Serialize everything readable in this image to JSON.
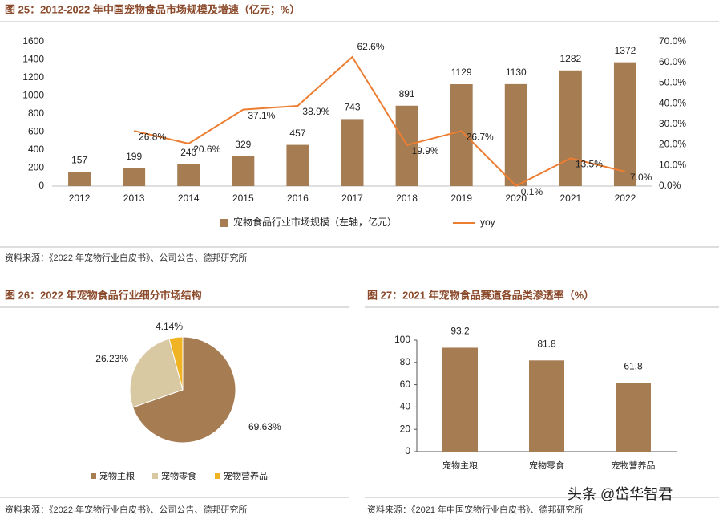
{
  "chart_data": [
    {
      "type": "bar",
      "title": "图 25：2012-2022 年中国宠物食品市场规模及增速（亿元；%）",
      "categories": [
        "2012",
        "2013",
        "2014",
        "2015",
        "2016",
        "2017",
        "2018",
        "2019",
        "2020",
        "2021",
        "2022"
      ],
      "series": [
        {
          "name": "宠物食品行业市场规模（左轴，亿元）",
          "type": "bar",
          "color": "#a67c52",
          "values": [
            157,
            199,
            240,
            329,
            457,
            743,
            891,
            1129,
            1130,
            1282,
            1372
          ]
        },
        {
          "name": "yoy",
          "type": "line",
          "axis": "y2",
          "color": "#ed7d31",
          "values": [
            null,
            26.8,
            20.6,
            37.1,
            38.9,
            62.6,
            19.9,
            26.7,
            0.1,
            13.5,
            7.0
          ],
          "value_labels": [
            null,
            "26.8%",
            "20.6%",
            "37.1%",
            "38.9%",
            "62.6%",
            "19.9%",
            "26.7%",
            "0.1%",
            "13.5%",
            "7.0%"
          ]
        }
      ],
      "ylim": [
        0,
        1600
      ],
      "yticks": [
        0,
        200,
        400,
        600,
        800,
        1000,
        1200,
        1400,
        1600
      ],
      "y2lim": [
        0,
        70
      ],
      "y2ticks": [
        {
          "value": 0,
          "label": "0.0%"
        },
        {
          "value": 10,
          "label": "10.0%"
        },
        {
          "value": 20,
          "label": "20.0%"
        },
        {
          "value": 30,
          "label": "30.0%"
        },
        {
          "value": 40,
          "label": "40.0%"
        },
        {
          "value": 50,
          "label": "50.0%"
        },
        {
          "value": 60,
          "label": "60.0%"
        },
        {
          "value": 70,
          "label": "70.0%"
        }
      ],
      "legend": "bottom",
      "source": "资料来源：《2022 年宠物行业白皮书》、公司公告、德邦研究所"
    },
    {
      "type": "pie",
      "title": "图 26：2022 年宠物食品行业细分市场结构",
      "categories": [
        "宠物主粮",
        "宠物零食",
        "宠物营养品"
      ],
      "values": [
        69.63,
        26.23,
        4.14
      ],
      "value_labels": [
        "69.63%",
        "26.23%",
        "4.14%"
      ],
      "colors": [
        "#a67c52",
        "#d9c9a3",
        "#f0b323"
      ],
      "legend": "bottom",
      "source": "资料来源：《2022 年宠物行业白皮书》、公司公告、德邦研究所"
    },
    {
      "type": "bar",
      "title": "图 27：2021 年宠物食品赛道各品类渗透率（%）",
      "categories": [
        "宠物主粮",
        "宠物零食",
        "宠物营养品"
      ],
      "values": [
        93.2,
        81.8,
        61.8
      ],
      "color": "#a67c52",
      "ylim": [
        0,
        100
      ],
      "yticks": [
        0,
        20,
        40,
        60,
        80,
        100
      ],
      "source": "资料来源：《2021 年中国宠物行业白皮书》、德邦研究所"
    }
  ],
  "watermark": "头条 @岱华智君"
}
